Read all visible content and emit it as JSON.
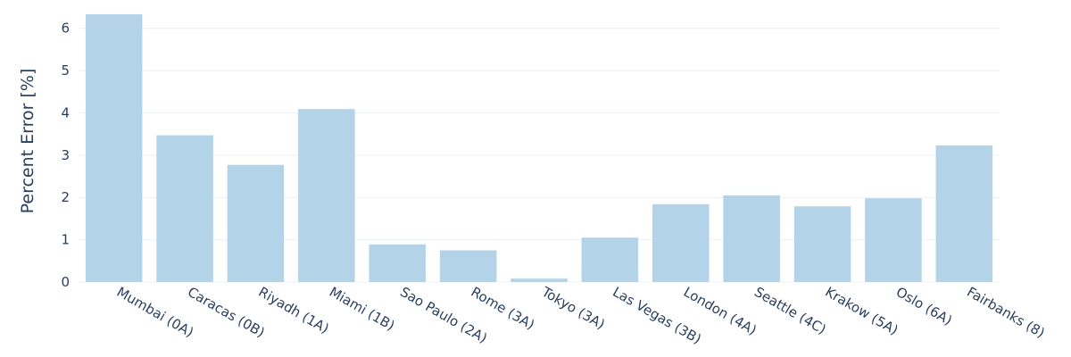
{
  "chart_data": {
    "type": "bar",
    "categories": [
      "Mumbai (0A)",
      "Caracas (0B)",
      "Riyadh (1A)",
      "Miami (1B)",
      "Sao Paulo (2A)",
      "Rome (3A)",
      "Tokyo (3A)",
      "Las Vegas (3B)",
      "London (4A)",
      "Seattle (4C)",
      "Krakow (5A)",
      "Oslo (6A)",
      "Fairbanks (8)"
    ],
    "values": [
      6.33,
      3.47,
      2.77,
      4.09,
      0.89,
      0.75,
      0.08,
      1.05,
      1.84,
      2.05,
      1.79,
      1.98,
      3.23
    ],
    "title": "",
    "xlabel": "",
    "ylabel": "Percent Error [%]",
    "ylim": [
      0,
      6.5
    ],
    "yticks": [
      0,
      1,
      2,
      3,
      4,
      5,
      6
    ],
    "grid": true,
    "bar_color": "#b3d3e8",
    "text_color": "#2a3f5f",
    "grid_color": "#ebf0f8"
  }
}
